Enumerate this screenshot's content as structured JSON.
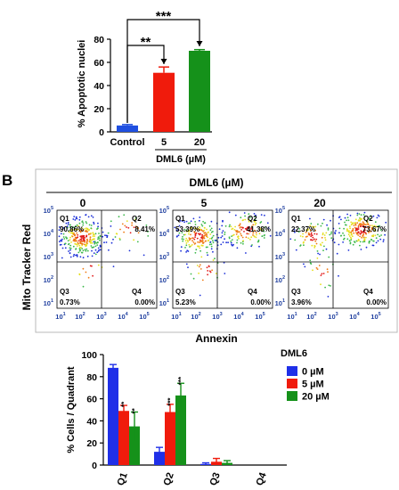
{
  "panel_b_label": "B",
  "chart_data": [
    {
      "type": "bar",
      "id": "apoptotic-nuclei",
      "title": "",
      "categories": [
        "Control",
        "5",
        "20"
      ],
      "values": [
        5.5,
        51,
        70
      ],
      "errors": [
        0.8,
        5,
        1
      ],
      "colors": [
        "#1f4fe0",
        "#f01b0c",
        "#15911a"
      ],
      "ylabel": "% Apoptotic nuclei",
      "xlabel": "DML6 (µM)",
      "ylim": [
        0,
        80
      ],
      "yticks": [
        "0",
        "20",
        "40",
        "60",
        "80"
      ],
      "significance": [
        {
          "from": "5",
          "to": "Control",
          "label": "**"
        },
        {
          "from": "20",
          "to": "Control",
          "label": "***"
        }
      ]
    },
    {
      "type": "scatter",
      "id": "flow-cytometry",
      "title": "DML6 (µM)",
      "xlabel": "Annexin",
      "ylabel": "Mito Tracker Red",
      "xticks": [
        "10",
        "10",
        "10",
        "10",
        "10"
      ],
      "tick_exponents": [
        "1",
        "2",
        "3",
        "4",
        "5"
      ],
      "yticks": [
        "10",
        "10",
        "10",
        "10",
        "10"
      ],
      "panels": [
        {
          "concentration": "0",
          "Q1": "90.86%",
          "Q2": "8.41%",
          "Q3": "0.73%",
          "Q4": "0.00%"
        },
        {
          "concentration": "5",
          "Q1": "53.39%",
          "Q2": "41.38%",
          "Q3": "5.23%",
          "Q4": "0.00%"
        },
        {
          "concentration": "20",
          "Q1": "22.37%",
          "Q2": "73.67%",
          "Q3": "3.96%",
          "Q4": "0.00%"
        }
      ],
      "quadrant_labels": [
        "Q1",
        "Q2",
        "Q3",
        "Q4"
      ]
    },
    {
      "type": "bar",
      "id": "cells-per-quadrant",
      "title": "",
      "categories": [
        "Q1",
        "Q2",
        "Q3",
        "Q4"
      ],
      "ylabel": "% Cells / Quadrant",
      "ylim": [
        0,
        100
      ],
      "yticks": [
        "0",
        "20",
        "40",
        "60",
        "80",
        "100"
      ],
      "legend_title": "DML6",
      "legend_position": "top-right",
      "series": [
        {
          "name": "0 µM",
          "color": "#1f2fe8",
          "values": [
            88,
            12,
            1,
            0
          ],
          "errors": [
            3,
            4,
            1,
            0
          ],
          "stars": [
            "",
            "",
            "",
            ""
          ]
        },
        {
          "name": "5 µM",
          "color": "#f01b0c",
          "values": [
            49,
            48,
            3,
            0
          ],
          "errors": [
            5,
            7,
            3,
            0
          ],
          "stars": [
            "**",
            "***",
            "",
            ""
          ]
        },
        {
          "name": "20 µM",
          "color": "#15911a",
          "values": [
            35,
            63,
            2,
            0
          ],
          "errors": [
            13,
            11,
            2,
            0
          ],
          "stars": [
            "**",
            "***",
            "",
            ""
          ]
        }
      ]
    }
  ]
}
